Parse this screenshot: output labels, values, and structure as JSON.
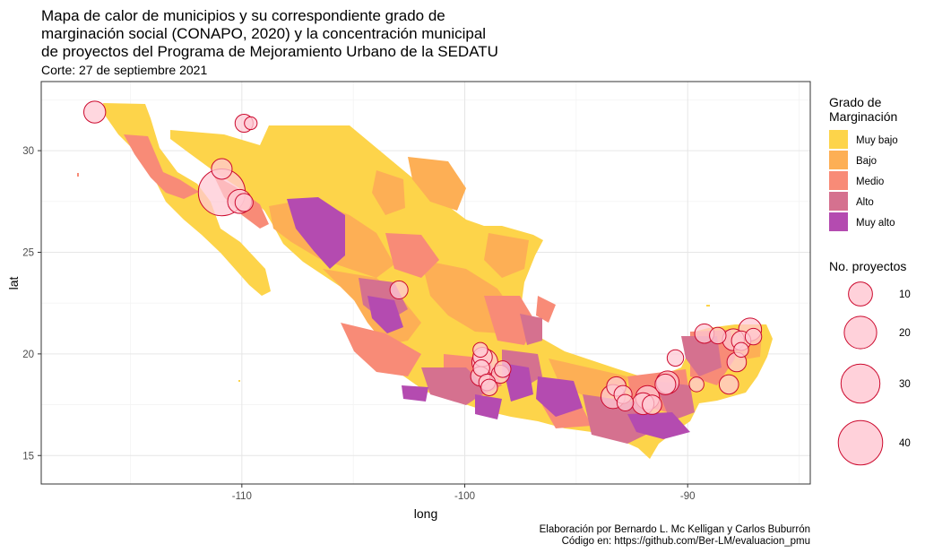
{
  "title_lines": [
    "Mapa de calor de municipios y su correspondiente grado de",
    "marginación social (CONAPO, 2020) y la concentración municipal",
    "de proyectos del Programa de Mejoramiento Urbano de la SEDATU"
  ],
  "subtitle": "Corte: 27 de septiembre 2021",
  "caption_lines": [
    "Elaboración por Bernardo L. Mc Kelligan y Carlos Buburrón",
    "Código en: https://github.com/Ber-LM/evaluacion_pmu"
  ],
  "legend_fill": {
    "title_lines": [
      "Grado de",
      "Marginación"
    ],
    "items": [
      {
        "label": "Muy bajo",
        "color": "#FDD44A"
      },
      {
        "label": "Bajo",
        "color": "#FDAF55"
      },
      {
        "label": "Medio",
        "color": "#F88B77"
      },
      {
        "label": "Alto",
        "color": "#D5718F"
      },
      {
        "label": "Muy alto",
        "color": "#B44BB0"
      }
    ]
  },
  "legend_size": {
    "title": "No. proyectos",
    "items": [
      {
        "value": 10,
        "label": "10"
      },
      {
        "value": 20,
        "label": "20"
      },
      {
        "value": 30,
        "label": "30"
      },
      {
        "value": 40,
        "label": "40"
      }
    ]
  },
  "chart_data": {
    "type": "scatter",
    "xlabel": "long",
    "ylabel": "lat",
    "xlim": [
      -119,
      -84.5
    ],
    "ylim": [
      13.6,
      33.4
    ],
    "xticks": [
      {
        "value": -110,
        "label": "-110"
      },
      {
        "value": -100,
        "label": "-100"
      },
      {
        "value": -90,
        "label": "-90"
      }
    ],
    "yticks": [
      {
        "value": 15,
        "label": "15"
      },
      {
        "value": 20,
        "label": "20"
      },
      {
        "value": 25,
        "label": "25"
      },
      {
        "value": 30,
        "label": "30"
      }
    ],
    "grid": true,
    "legend_position": "right",
    "point_fill": "#FFC9D4",
    "point_stroke": "#CC0A2E",
    "points": [
      {
        "long": -116.6,
        "lat": 31.9,
        "projects": 8
      },
      {
        "long": -109.9,
        "lat": 31.35,
        "projects": 5
      },
      {
        "long": -109.6,
        "lat": 31.35,
        "projects": 2
      },
      {
        "long": -110.9,
        "lat": 29.1,
        "projects": 7
      },
      {
        "long": -110.9,
        "lat": 27.95,
        "projects": 45
      },
      {
        "long": -110.1,
        "lat": 27.5,
        "projects": 10
      },
      {
        "long": -109.9,
        "lat": 27.45,
        "projects": 5
      },
      {
        "long": -102.95,
        "lat": 23.15,
        "projects": 5
      },
      {
        "long": -99.3,
        "lat": 20.2,
        "projects": 3
      },
      {
        "long": -99.2,
        "lat": 19.85,
        "projects": 6
      },
      {
        "long": -99.1,
        "lat": 19.6,
        "projects": 12
      },
      {
        "long": -99.25,
        "lat": 19.3,
        "projects": 4
      },
      {
        "long": -98.3,
        "lat": 19.25,
        "projects": 4
      },
      {
        "long": -98.4,
        "lat": 19.0,
        "projects": 5
      },
      {
        "long": -99.3,
        "lat": 18.9,
        "projects": 6
      },
      {
        "long": -99.0,
        "lat": 18.6,
        "projects": 4
      },
      {
        "long": -98.9,
        "lat": 18.35,
        "projects": 4
      },
      {
        "long": -93.35,
        "lat": 17.9,
        "projects": 10
      },
      {
        "long": -92.9,
        "lat": 18.0,
        "projects": 5
      },
      {
        "long": -93.2,
        "lat": 18.4,
        "projects": 6
      },
      {
        "long": -92.8,
        "lat": 17.6,
        "projects": 4
      },
      {
        "long": -92.0,
        "lat": 17.55,
        "projects": 8
      },
      {
        "long": -91.8,
        "lat": 17.85,
        "projects": 10
      },
      {
        "long": -91.6,
        "lat": 17.5,
        "projects": 6
      },
      {
        "long": -91.0,
        "lat": 18.5,
        "projects": 7
      },
      {
        "long": -90.9,
        "lat": 18.6,
        "projects": 9
      },
      {
        "long": -90.55,
        "lat": 19.8,
        "projects": 4
      },
      {
        "long": -89.25,
        "lat": 21.0,
        "projects": 6
      },
      {
        "long": -88.65,
        "lat": 20.9,
        "projects": 4
      },
      {
        "long": -87.95,
        "lat": 20.7,
        "projects": 8
      },
      {
        "long": -87.6,
        "lat": 20.65,
        "projects": 6
      },
      {
        "long": -87.2,
        "lat": 21.2,
        "projects": 9
      },
      {
        "long": -87.05,
        "lat": 20.85,
        "projects": 4
      },
      {
        "long": -87.8,
        "lat": 19.6,
        "projects": 6
      },
      {
        "long": -88.15,
        "lat": 18.5,
        "projects": 6
      },
      {
        "long": -87.6,
        "lat": 20.2,
        "projects": 3
      },
      {
        "long": -89.6,
        "lat": 18.5,
        "projects": 3
      }
    ]
  }
}
